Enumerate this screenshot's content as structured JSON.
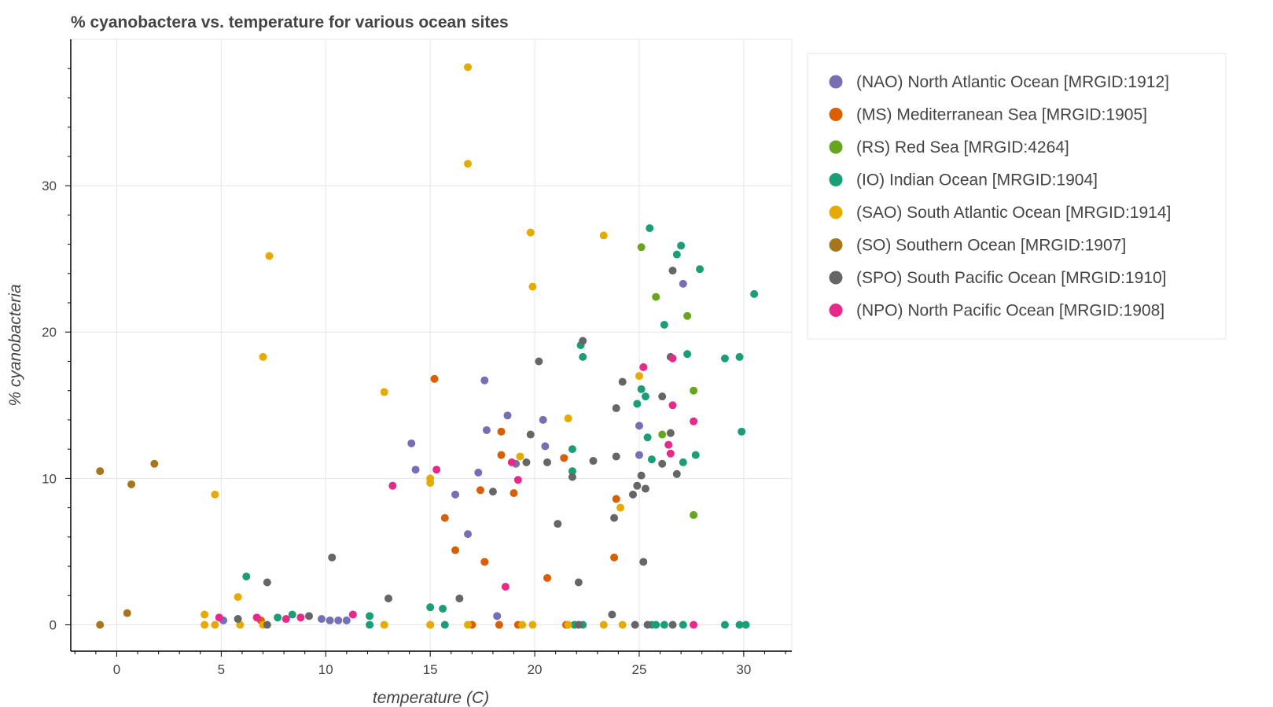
{
  "chart_data": {
    "type": "scatter",
    "title": "% cyanobactera vs. temperature for various ocean sites",
    "xlabel": "temperature (C)",
    "ylabel": "% cyanobacteria",
    "xlim": [
      -2.2,
      32.3
    ],
    "ylim": [
      -1.8,
      40.0
    ],
    "xticks": [
      0,
      5,
      10,
      15,
      20,
      25,
      30
    ],
    "yticks": [
      0,
      10,
      20,
      30
    ],
    "grid": true,
    "legend_position": "top-right, outside plot",
    "series": [
      {
        "name": "(NAO) North Atlantic Ocean [MRGID:1912]",
        "color": "#7570b3",
        "points": [
          [
            5.1,
            0.3
          ],
          [
            9.8,
            0.4
          ],
          [
            10.2,
            0.3
          ],
          [
            10.6,
            0.3
          ],
          [
            11.0,
            0.3
          ],
          [
            14.1,
            12.4
          ],
          [
            14.3,
            10.6
          ],
          [
            16.2,
            8.9
          ],
          [
            16.8,
            6.2
          ],
          [
            17.3,
            10.4
          ],
          [
            17.6,
            16.7
          ],
          [
            17.7,
            13.3
          ],
          [
            18.2,
            0.6
          ],
          [
            18.7,
            14.3
          ],
          [
            19.1,
            11.0
          ],
          [
            20.4,
            14.0
          ],
          [
            20.5,
            12.2
          ],
          [
            25.0,
            13.6
          ],
          [
            25.0,
            11.6
          ],
          [
            27.1,
            23.3
          ]
        ]
      },
      {
        "name": "(MS) Mediterranean Sea [MRGID:1905]",
        "color": "#d95f02",
        "points": [
          [
            6.9,
            0.3
          ],
          [
            15.2,
            16.8
          ],
          [
            15.0,
            0.0
          ],
          [
            15.7,
            7.3
          ],
          [
            16.2,
            5.1
          ],
          [
            17.0,
            0.0
          ],
          [
            17.4,
            9.2
          ],
          [
            17.6,
            4.3
          ],
          [
            18.3,
            0.0
          ],
          [
            18.4,
            13.2
          ],
          [
            18.4,
            11.6
          ],
          [
            19.0,
            9.0
          ],
          [
            19.2,
            0.0
          ],
          [
            20.6,
            3.2
          ],
          [
            21.4,
            11.4
          ],
          [
            21.5,
            0.0
          ],
          [
            23.9,
            8.6
          ],
          [
            23.8,
            4.6
          ]
        ]
      },
      {
        "name": "(RS) Red Sea [MRGID:4264]",
        "color": "#66a61e",
        "points": [
          [
            25.1,
            25.8
          ],
          [
            25.8,
            22.4
          ],
          [
            27.3,
            21.1
          ],
          [
            27.6,
            16.0
          ],
          [
            26.1,
            13.0
          ],
          [
            27.6,
            7.5
          ]
        ]
      },
      {
        "name": "(IO) Indian Ocean [MRGID:1904]",
        "color": "#1b9e77",
        "points": [
          [
            6.2,
            3.3
          ],
          [
            7.7,
            0.5
          ],
          [
            8.4,
            0.7
          ],
          [
            12.1,
            0.6
          ],
          [
            12.1,
            0.0
          ],
          [
            15.0,
            1.2
          ],
          [
            15.6,
            1.1
          ],
          [
            15.7,
            0.0
          ],
          [
            21.8,
            12.0
          ],
          [
            21.8,
            10.5
          ],
          [
            21.9,
            0.0
          ],
          [
            22.2,
            19.1
          ],
          [
            22.3,
            18.3
          ],
          [
            22.3,
            0.0
          ],
          [
            24.9,
            15.1
          ],
          [
            25.1,
            16.1
          ],
          [
            25.3,
            15.6
          ],
          [
            25.4,
            12.8
          ],
          [
            25.6,
            11.3
          ],
          [
            25.5,
            27.1
          ],
          [
            25.6,
            0.0
          ],
          [
            25.8,
            0.0
          ],
          [
            26.2,
            20.5
          ],
          [
            26.2,
            0.0
          ],
          [
            26.8,
            25.3
          ],
          [
            27.0,
            25.9
          ],
          [
            27.1,
            11.1
          ],
          [
            27.1,
            0.0
          ],
          [
            27.3,
            18.5
          ],
          [
            27.7,
            11.6
          ],
          [
            27.9,
            24.3
          ],
          [
            29.1,
            18.2
          ],
          [
            29.1,
            0.0
          ],
          [
            29.8,
            18.3
          ],
          [
            29.8,
            0.0
          ],
          [
            29.9,
            13.2
          ],
          [
            30.1,
            0.0
          ],
          [
            30.5,
            22.6
          ]
        ]
      },
      {
        "name": "(SAO) South Atlantic Ocean [MRGID:1914]",
        "color": "#e6ab02",
        "points": [
          [
            4.2,
            0.7
          ],
          [
            4.2,
            0.0
          ],
          [
            4.7,
            8.9
          ],
          [
            4.7,
            0.0
          ],
          [
            5.8,
            1.9
          ],
          [
            5.9,
            0.0
          ],
          [
            7.0,
            18.3
          ],
          [
            7.0,
            0.0
          ],
          [
            7.3,
            25.2
          ],
          [
            12.8,
            15.9
          ],
          [
            12.8,
            0.0
          ],
          [
            15.0,
            10.0
          ],
          [
            15.0,
            9.7
          ],
          [
            15.0,
            0.0
          ],
          [
            16.8,
            38.1
          ],
          [
            16.8,
            31.5
          ],
          [
            16.8,
            0.0
          ],
          [
            19.3,
            11.5
          ],
          [
            19.4,
            0.0
          ],
          [
            19.8,
            26.8
          ],
          [
            19.9,
            23.1
          ],
          [
            19.9,
            0.0
          ],
          [
            21.6,
            14.1
          ],
          [
            21.6,
            0.0
          ],
          [
            23.3,
            26.6
          ],
          [
            23.3,
            0.0
          ],
          [
            24.1,
            8.0
          ],
          [
            24.2,
            0.0
          ],
          [
            25.0,
            17.0
          ]
        ]
      },
      {
        "name": "(SO) Southern Ocean [MRGID:1907]",
        "color": "#a6761d",
        "points": [
          [
            -0.8,
            10.5
          ],
          [
            -0.8,
            0.0
          ],
          [
            0.5,
            0.8
          ],
          [
            0.7,
            9.6
          ],
          [
            1.8,
            11.0
          ]
        ]
      },
      {
        "name": "(SPO) South Pacific Ocean [MRGID:1910]",
        "color": "#666666",
        "points": [
          [
            5.8,
            0.4
          ],
          [
            7.2,
            2.9
          ],
          [
            7.2,
            0.0
          ],
          [
            9.2,
            0.6
          ],
          [
            10.3,
            4.6
          ],
          [
            13.0,
            1.8
          ],
          [
            16.4,
            1.8
          ],
          [
            18.0,
            9.1
          ],
          [
            19.6,
            11.1
          ],
          [
            19.8,
            13.0
          ],
          [
            20.2,
            18.0
          ],
          [
            20.6,
            11.1
          ],
          [
            21.1,
            6.9
          ],
          [
            21.8,
            10.1
          ],
          [
            22.1,
            2.9
          ],
          [
            22.1,
            0.0
          ],
          [
            22.3,
            19.4
          ],
          [
            22.8,
            11.2
          ],
          [
            23.7,
            0.7
          ],
          [
            23.8,
            7.3
          ],
          [
            23.9,
            14.8
          ],
          [
            23.9,
            11.5
          ],
          [
            24.2,
            16.6
          ],
          [
            24.7,
            8.9
          ],
          [
            24.8,
            0.0
          ],
          [
            24.9,
            9.5
          ],
          [
            25.1,
            10.2
          ],
          [
            25.2,
            4.3
          ],
          [
            25.3,
            9.3
          ],
          [
            25.4,
            0.0
          ],
          [
            26.1,
            15.6
          ],
          [
            26.1,
            11.0
          ],
          [
            26.5,
            18.3
          ],
          [
            26.5,
            13.1
          ],
          [
            26.6,
            24.2
          ],
          [
            26.6,
            0.0
          ],
          [
            26.8,
            10.3
          ]
        ]
      },
      {
        "name": "(NPO) North Pacific Ocean [MRGID:1908]",
        "color": "#e7298a",
        "points": [
          [
            4.9,
            0.5
          ],
          [
            6.7,
            0.5
          ],
          [
            8.1,
            0.4
          ],
          [
            8.8,
            0.5
          ],
          [
            11.3,
            0.7
          ],
          [
            13.2,
            9.5
          ],
          [
            15.3,
            10.6
          ],
          [
            18.6,
            2.6
          ],
          [
            18.9,
            11.1
          ],
          [
            19.2,
            9.9
          ],
          [
            25.2,
            17.6
          ],
          [
            26.4,
            12.3
          ],
          [
            26.5,
            11.7
          ],
          [
            26.6,
            18.2
          ],
          [
            26.6,
            15.0
          ],
          [
            27.6,
            13.9
          ],
          [
            27.6,
            0.0
          ]
        ]
      }
    ]
  }
}
